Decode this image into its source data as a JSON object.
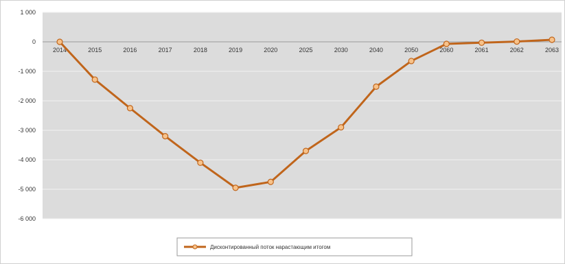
{
  "chart_data": {
    "type": "line",
    "title": "",
    "xlabel": "",
    "ylabel": "",
    "categories": [
      "2014",
      "2015",
      "2016",
      "2017",
      "2018",
      "2019",
      "2020",
      "2025",
      "2030",
      "2040",
      "2050",
      "2060",
      "2061",
      "2062",
      "2063"
    ],
    "series": [
      {
        "name": "Дисконтированный поток нарастающим итогом",
        "values": [
          0,
          -1280,
          -2250,
          -3200,
          -4100,
          -4950,
          -4750,
          -3700,
          -2900,
          -1520,
          -650,
          -70,
          -30,
          10,
          70
        ],
        "color": "#c0651b",
        "marker_color": "#f7c28a"
      }
    ],
    "ylim": [
      -6000,
      1000
    ],
    "yticks": [
      1000,
      0,
      -1000,
      -2000,
      -3000,
      -4000,
      -5000,
      -6000
    ],
    "ytick_labels": [
      "1 000",
      "0",
      "-1 000",
      "-2 000",
      "-3 000",
      "-4 000",
      "-5 000",
      "-6 000"
    ],
    "grid": true,
    "legend": "bottom",
    "plot_background": "#dcdcdc"
  }
}
